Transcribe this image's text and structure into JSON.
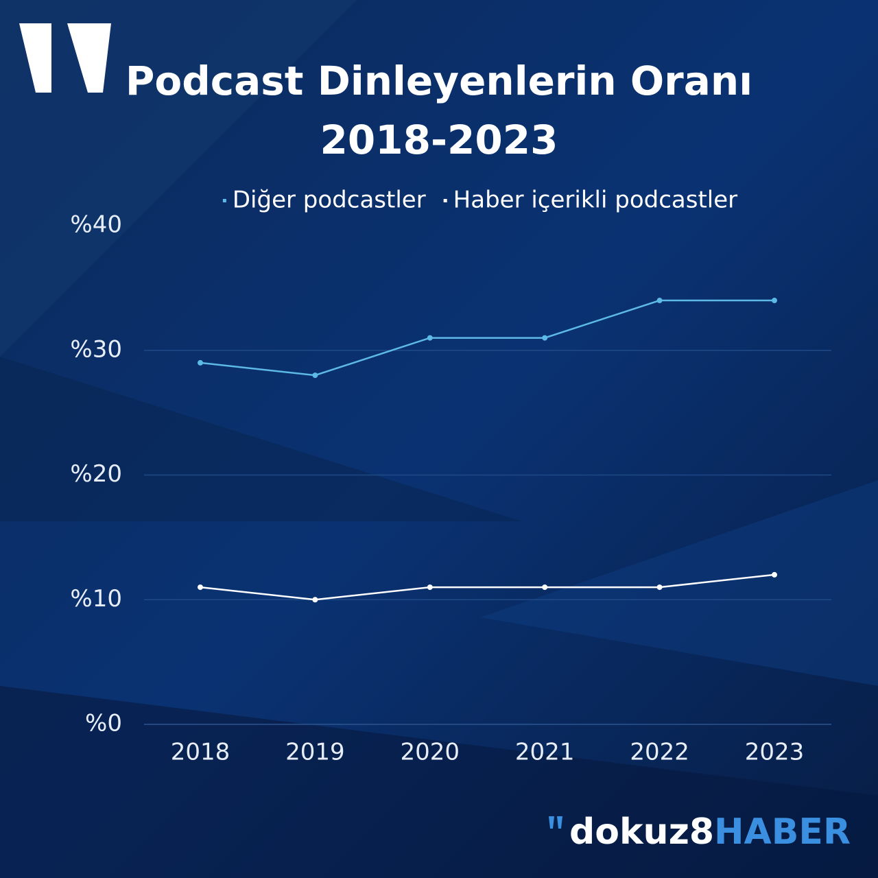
{
  "chart_data": {
    "type": "line",
    "title": [
      "Podcast Dinleyenlerin Oranı",
      "2018-2023"
    ],
    "categories": [
      "2018",
      "2019",
      "2020",
      "2021",
      "2022",
      "2023"
    ],
    "series": [
      {
        "name": "Diğer podcastler",
        "color": "#5db9e6",
        "values": [
          29,
          28,
          31,
          31,
          34,
          34
        ]
      },
      {
        "name": "Haber içerikli podcastler",
        "color": "#ffffff",
        "values": [
          11,
          10,
          11,
          11,
          11,
          12
        ]
      }
    ],
    "ylim": [
      0,
      40
    ],
    "yticks": [
      {
        "value": 0,
        "label": "%0"
      },
      {
        "value": 10,
        "label": "%10"
      },
      {
        "value": 20,
        "label": "%20"
      },
      {
        "value": 30,
        "label": "%30"
      },
      {
        "value": 40,
        "label": "%40"
      }
    ],
    "grid": true,
    "legend": "top"
  },
  "brand": {
    "name": "dokuz8",
    "suffix": "HABER"
  }
}
